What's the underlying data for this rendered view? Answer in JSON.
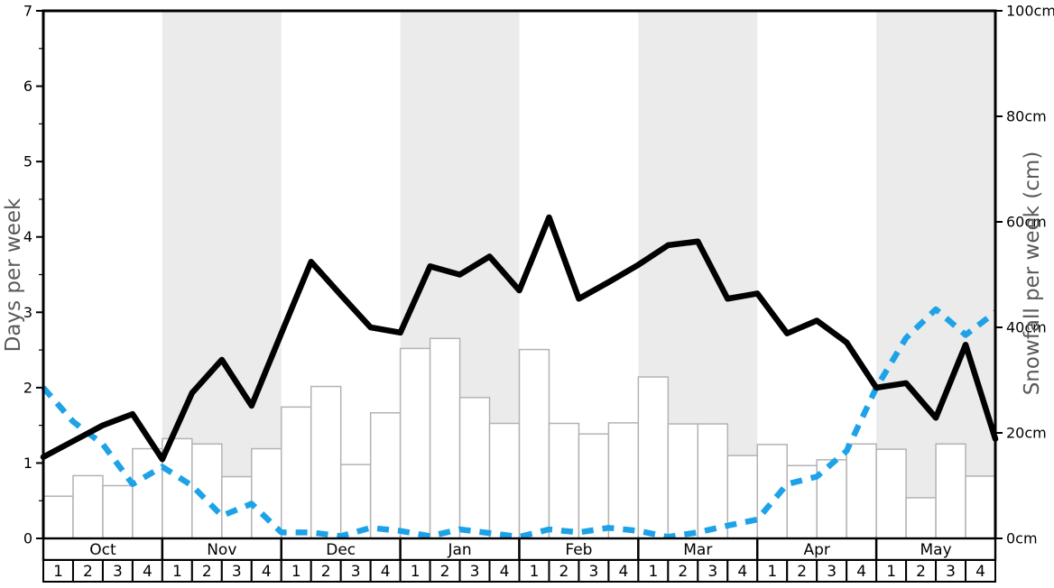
{
  "chart_data": {
    "type": "bar+line composite (weekly snowfall history chart)",
    "title": "",
    "left_axis": {
      "label": "Days per week",
      "min": 0,
      "max": 7,
      "tick_step": 1,
      "minor_tick_step": 0.5,
      "tick_labels": [
        "0",
        "1",
        "2",
        "3",
        "4",
        "5",
        "6",
        "7"
      ]
    },
    "right_axis": {
      "label": "Snowfall per week (cm)",
      "min": 0,
      "max": 100,
      "tick_step": 20,
      "tick_labels": [
        "0cm",
        "20cm",
        "40cm",
        "60cm",
        "80cm",
        "100cm"
      ]
    },
    "months": [
      {
        "label": "Oct",
        "shaded": false
      },
      {
        "label": "Nov",
        "shaded": true
      },
      {
        "label": "Dec",
        "shaded": false
      },
      {
        "label": "Jan",
        "shaded": true
      },
      {
        "label": "Feb",
        "shaded": false
      },
      {
        "label": "Mar",
        "shaded": true
      },
      {
        "label": "Apr",
        "shaded": false
      },
      {
        "label": "May",
        "shaded": true
      }
    ],
    "week_labels": [
      "1",
      "2",
      "3",
      "4"
    ],
    "weeks_per_month": 4,
    "bars": {
      "axis": "right",
      "unit": "cm",
      "note": "one bar per week, Oct week1 through May week4",
      "values": [
        8.0,
        11.9,
        10.0,
        17.0,
        18.9,
        17.9,
        11.7,
        17.0,
        24.9,
        28.8,
        14.0,
        23.8,
        36.0,
        37.9,
        26.7,
        21.8,
        35.8,
        21.8,
        19.8,
        21.9,
        30.6,
        21.7,
        21.7,
        15.7,
        17.8,
        13.8,
        14.9,
        17.9,
        16.9,
        7.7,
        17.9,
        11.8
      ]
    },
    "black_line": {
      "axis": "left",
      "unit": "days",
      "note": "33 points at week boundaries from Oct start to May end",
      "values": [
        1.08,
        1.29,
        1.5,
        1.65,
        1.05,
        1.93,
        2.37,
        1.76,
        2.72,
        3.67,
        3.23,
        2.8,
        2.73,
        3.61,
        3.5,
        3.74,
        3.29,
        4.26,
        3.18,
        3.4,
        3.63,
        3.89,
        3.94,
        3.18,
        3.25,
        2.72,
        2.89,
        2.6,
        2.0,
        2.06,
        1.6,
        2.57,
        1.32
      ]
    },
    "blue_dashed_line": {
      "axis": "left",
      "unit": "days",
      "note": "33 points at week boundaries from Oct start to May end",
      "values": [
        2.0,
        1.55,
        1.25,
        0.72,
        0.95,
        0.7,
        0.3,
        0.46,
        0.08,
        0.08,
        0.03,
        0.14,
        0.1,
        0.03,
        0.12,
        0.07,
        0.02,
        0.12,
        0.08,
        0.14,
        0.1,
        0.02,
        0.08,
        0.17,
        0.25,
        0.72,
        0.82,
        1.16,
        2.0,
        2.66,
        3.04,
        2.7,
        3.0
      ]
    },
    "legend_position": "none",
    "grid": "off",
    "colors": {
      "black_line": "#000000",
      "blue_line": "#1da2e8",
      "month_band": "#ebebeb",
      "bar_fill": "#ffffff",
      "bar_border": "#b3b3b3",
      "axis_line": "#000000",
      "tick_text": "#000000",
      "axis_title_text": "#595959"
    }
  }
}
